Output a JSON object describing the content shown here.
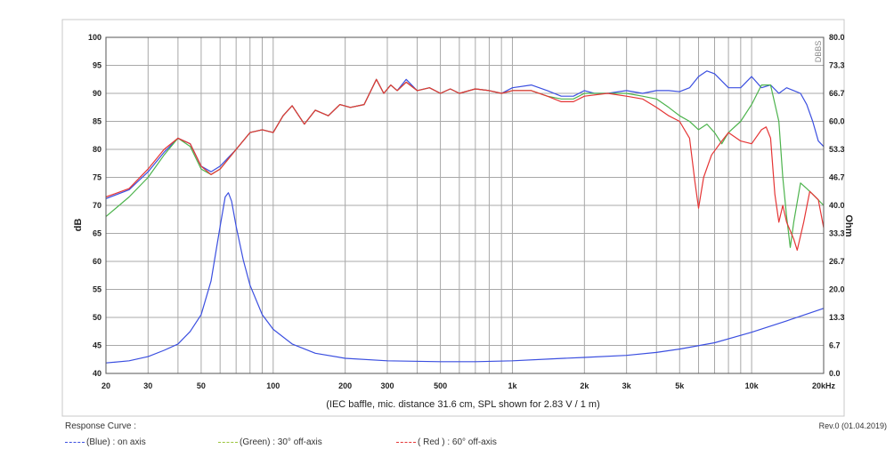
{
  "chart_data": {
    "type": "line",
    "caption": "(IEC baffle, mic. distance 31.6 cm, SPL shown for 2.83 V / 1 m)",
    "ribbon": "DBBS",
    "xscale": "log",
    "xlim": [
      20,
      20000
    ],
    "x_ticks": [
      {
        "v": 20,
        "label": "20"
      },
      {
        "v": 30,
        "label": "30"
      },
      {
        "v": 50,
        "label": "50"
      },
      {
        "v": 100,
        "label": "100"
      },
      {
        "v": 200,
        "label": "200"
      },
      {
        "v": 300,
        "label": "300"
      },
      {
        "v": 500,
        "label": "500"
      },
      {
        "v": 1000,
        "label": "1k"
      },
      {
        "v": 2000,
        "label": "2k"
      },
      {
        "v": 3000,
        "label": "3k"
      },
      {
        "v": 5000,
        "label": "5k"
      },
      {
        "v": 10000,
        "label": "10k"
      },
      {
        "v": 20000,
        "label": "20kHz"
      }
    ],
    "ylabel_left": "dB",
    "ylim_left": [
      40,
      100
    ],
    "y_ticks_left": [
      "40",
      "45",
      "50",
      "55",
      "60",
      "65",
      "70",
      "75",
      "80",
      "85",
      "90",
      "95",
      "100"
    ],
    "ylabel_right": "Ohm",
    "ylim_right": [
      0,
      80
    ],
    "y_ticks_right": [
      "0.0",
      "6.7",
      "13.3",
      "20.0",
      "26.7",
      "33.3",
      "40.0",
      "46.7",
      "53.3",
      "60.0",
      "66.7",
      "73.3",
      "80.0"
    ],
    "grid": true,
    "series": [
      {
        "name": "(Blue)  : on axis",
        "color": "#3b4fe0",
        "points": [
          [
            20,
            71.2
          ],
          [
            25,
            72.8
          ],
          [
            30,
            76
          ],
          [
            35,
            79.5
          ],
          [
            40,
            82
          ],
          [
            45,
            81
          ],
          [
            50,
            77
          ],
          [
            55,
            76
          ],
          [
            60,
            77
          ],
          [
            70,
            80
          ],
          [
            80,
            83
          ],
          [
            90,
            83.5
          ],
          [
            100,
            83
          ],
          [
            110,
            86
          ],
          [
            120,
            87.8
          ],
          [
            135,
            84.5
          ],
          [
            150,
            87
          ],
          [
            170,
            86
          ],
          [
            190,
            88
          ],
          [
            210,
            87.5
          ],
          [
            240,
            88
          ],
          [
            270,
            92.5
          ],
          [
            290,
            90
          ],
          [
            310,
            91.5
          ],
          [
            330,
            90.5
          ],
          [
            360,
            92.5
          ],
          [
            400,
            90.5
          ],
          [
            450,
            91
          ],
          [
            500,
            90
          ],
          [
            550,
            90.8
          ],
          [
            600,
            90
          ],
          [
            700,
            90.8
          ],
          [
            800,
            90.5
          ],
          [
            900,
            90
          ],
          [
            1000,
            91
          ],
          [
            1200,
            91.5
          ],
          [
            1400,
            90.5
          ],
          [
            1600,
            89.5
          ],
          [
            1800,
            89.5
          ],
          [
            2000,
            90.5
          ],
          [
            2200,
            90
          ],
          [
            2500,
            90
          ],
          [
            3000,
            90.5
          ],
          [
            3500,
            90
          ],
          [
            4000,
            90.5
          ],
          [
            4500,
            90.5
          ],
          [
            5000,
            90.3
          ],
          [
            5500,
            91
          ],
          [
            6000,
            93
          ],
          [
            6500,
            94
          ],
          [
            7000,
            93.5
          ],
          [
            8000,
            91
          ],
          [
            9000,
            91
          ],
          [
            10000,
            93
          ],
          [
            11000,
            91
          ],
          [
            12000,
            91.5
          ],
          [
            13000,
            90
          ],
          [
            14000,
            91
          ],
          [
            15000,
            90.5
          ],
          [
            16000,
            90
          ],
          [
            17000,
            88
          ],
          [
            18000,
            85
          ],
          [
            19000,
            81.5
          ],
          [
            20000,
            80.5
          ]
        ]
      },
      {
        "name": "(Green) : 30° off-axis",
        "color": "#4cb34c",
        "points": [
          [
            20,
            68
          ],
          [
            25,
            71.5
          ],
          [
            30,
            75
          ],
          [
            35,
            79
          ],
          [
            40,
            82
          ],
          [
            45,
            80.5
          ],
          [
            50,
            76.5
          ],
          [
            55,
            75.5
          ],
          [
            60,
            76.5
          ],
          [
            70,
            80
          ],
          [
            80,
            83
          ],
          [
            90,
            83.5
          ],
          [
            100,
            83
          ],
          [
            110,
            86
          ],
          [
            120,
            87.8
          ],
          [
            135,
            84.5
          ],
          [
            150,
            87
          ],
          [
            170,
            86
          ],
          [
            190,
            88
          ],
          [
            210,
            87.5
          ],
          [
            240,
            88
          ],
          [
            270,
            92.5
          ],
          [
            290,
            90
          ],
          [
            310,
            91.5
          ],
          [
            330,
            90.5
          ],
          [
            360,
            92
          ],
          [
            400,
            90.5
          ],
          [
            450,
            91
          ],
          [
            500,
            90
          ],
          [
            550,
            90.8
          ],
          [
            600,
            90
          ],
          [
            700,
            90.8
          ],
          [
            800,
            90.5
          ],
          [
            900,
            90
          ],
          [
            1000,
            90.5
          ],
          [
            1200,
            90.5
          ],
          [
            1400,
            89.5
          ],
          [
            1600,
            89
          ],
          [
            1800,
            89
          ],
          [
            2000,
            90
          ],
          [
            2200,
            90
          ],
          [
            2500,
            90
          ],
          [
            3000,
            90
          ],
          [
            3500,
            89.5
          ],
          [
            4000,
            89
          ],
          [
            4500,
            87.5
          ],
          [
            5000,
            86
          ],
          [
            5500,
            85
          ],
          [
            6000,
            83.5
          ],
          [
            6500,
            84.5
          ],
          [
            7000,
            83
          ],
          [
            7500,
            81
          ],
          [
            8000,
            83
          ],
          [
            9000,
            85
          ],
          [
            10000,
            88
          ],
          [
            11000,
            91.5
          ],
          [
            12000,
            91.5
          ],
          [
            13000,
            85
          ],
          [
            13500,
            75
          ],
          [
            14000,
            68
          ],
          [
            14500,
            62.5
          ],
          [
            15000,
            67
          ],
          [
            16000,
            74
          ],
          [
            17000,
            73
          ],
          [
            18000,
            72
          ],
          [
            20000,
            70
          ]
        ]
      },
      {
        "name": "( Red ) : 60° off-axis",
        "color": "#e53535",
        "points": [
          [
            20,
            71.5
          ],
          [
            25,
            73
          ],
          [
            30,
            76.5
          ],
          [
            35,
            80
          ],
          [
            40,
            82
          ],
          [
            45,
            81
          ],
          [
            50,
            77
          ],
          [
            55,
            75.5
          ],
          [
            60,
            76.5
          ],
          [
            70,
            80
          ],
          [
            80,
            83
          ],
          [
            90,
            83.5
          ],
          [
            100,
            83
          ],
          [
            110,
            86
          ],
          [
            120,
            87.8
          ],
          [
            135,
            84.5
          ],
          [
            150,
            87
          ],
          [
            170,
            86
          ],
          [
            190,
            88
          ],
          [
            210,
            87.5
          ],
          [
            240,
            88
          ],
          [
            270,
            92.5
          ],
          [
            290,
            90
          ],
          [
            310,
            91.5
          ],
          [
            330,
            90.5
          ],
          [
            360,
            92
          ],
          [
            400,
            90.5
          ],
          [
            450,
            91
          ],
          [
            500,
            90
          ],
          [
            550,
            90.8
          ],
          [
            600,
            90
          ],
          [
            700,
            90.8
          ],
          [
            800,
            90.5
          ],
          [
            900,
            90
          ],
          [
            1000,
            90.5
          ],
          [
            1200,
            90.5
          ],
          [
            1400,
            89.5
          ],
          [
            1600,
            88.5
          ],
          [
            1800,
            88.5
          ],
          [
            2000,
            89.5
          ],
          [
            2500,
            90
          ],
          [
            3000,
            89.5
          ],
          [
            3500,
            89
          ],
          [
            4000,
            87.5
          ],
          [
            4500,
            86
          ],
          [
            5000,
            85
          ],
          [
            5500,
            82
          ],
          [
            5800,
            74
          ],
          [
            6000,
            69.5
          ],
          [
            6300,
            75
          ],
          [
            6800,
            79
          ],
          [
            7500,
            81.5
          ],
          [
            8000,
            83
          ],
          [
            9000,
            81.5
          ],
          [
            10000,
            81
          ],
          [
            11000,
            83.5
          ],
          [
            11500,
            84
          ],
          [
            12000,
            82
          ],
          [
            12500,
            72
          ],
          [
            13000,
            67
          ],
          [
            13500,
            70
          ],
          [
            14000,
            67
          ],
          [
            15000,
            64
          ],
          [
            15500,
            62
          ],
          [
            16500,
            67
          ],
          [
            17500,
            72.5
          ],
          [
            19000,
            71
          ],
          [
            20000,
            66
          ]
        ]
      },
      {
        "name": "Impedance",
        "color": "#3b4fe0",
        "axis": "right",
        "points": [
          [
            20,
            2.5
          ],
          [
            25,
            3
          ],
          [
            30,
            4
          ],
          [
            35,
            5.5
          ],
          [
            40,
            7
          ],
          [
            45,
            10
          ],
          [
            50,
            14
          ],
          [
            55,
            22
          ],
          [
            60,
            35
          ],
          [
            63,
            42
          ],
          [
            65,
            43
          ],
          [
            67,
            41
          ],
          [
            70,
            35
          ],
          [
            75,
            27
          ],
          [
            80,
            21
          ],
          [
            90,
            14
          ],
          [
            100,
            10.5
          ],
          [
            120,
            7
          ],
          [
            150,
            4.8
          ],
          [
            200,
            3.6
          ],
          [
            300,
            3
          ],
          [
            500,
            2.8
          ],
          [
            700,
            2.8
          ],
          [
            1000,
            3
          ],
          [
            1500,
            3.5
          ],
          [
            2000,
            3.8
          ],
          [
            3000,
            4.3
          ],
          [
            4000,
            5
          ],
          [
            5000,
            5.8
          ],
          [
            7000,
            7.3
          ],
          [
            10000,
            9.8
          ],
          [
            14000,
            12.5
          ],
          [
            20000,
            15.5
          ]
        ]
      }
    ]
  },
  "footer": {
    "response_curve": "Response Curve :",
    "revision": "Rev.0 (01.04.2019)"
  },
  "legend": [
    {
      "label": "(Blue)  : on axis",
      "color": "#3b4fe0"
    },
    {
      "label": "(Green) : 30° off-axis",
      "color": "#9ac43a"
    },
    {
      "label": "( Red ) : 60° off-axis",
      "color": "#e53535"
    }
  ]
}
